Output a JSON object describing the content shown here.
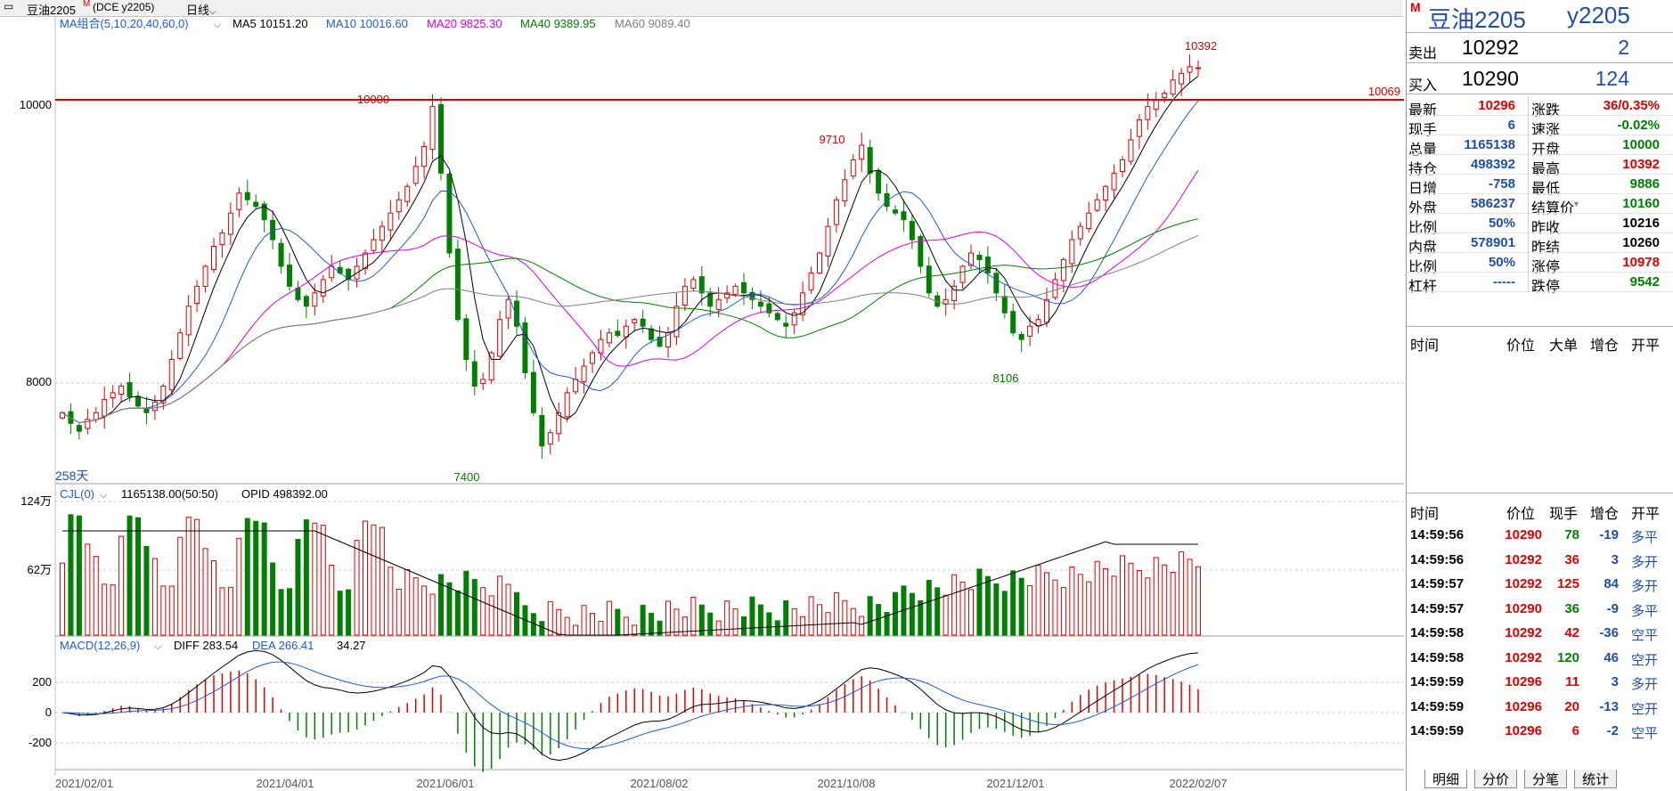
{
  "window": {
    "title": "豆油2205",
    "title_mark": "M",
    "subtitle": "(DCE y2205)",
    "period": "日线"
  },
  "colors": {
    "up": "#e00000",
    "down": "#008000",
    "ma5": "#000000",
    "ma10": "#1f5bd6",
    "ma20": "#e000e0",
    "ma40": "#008000",
    "ma60": "#808080",
    "line": "#e00000"
  },
  "main_legend": {
    "name": "MA组合(5,10,20,40,60,0)",
    "ma5": "MA5 10151.20",
    "ma10": "MA10 10016.60",
    "ma20": "MA20 9825.30",
    "ma40": "MA40 9389.95",
    "ma60": "MA60 9089.40"
  },
  "main_axis": {
    "y10000": "10000",
    "y8000": "8000",
    "days": "258天",
    "hline_value": "10069"
  },
  "annotations": {
    "high_10000": "10000",
    "high_9710": "9710",
    "high_10392": "10392",
    "low_7400": "7400",
    "low_8106": "8106"
  },
  "vol_legend": {
    "name": "CJL(0)",
    "value": "1165138.00(50:50)",
    "opid": "OPID 498392.00"
  },
  "vol_axis": {
    "top": "124万",
    "mid": "62万"
  },
  "macd_legend": {
    "name": "MACD(12,26,9)",
    "diff": "DIFF 283.54",
    "dea": "DEA 266.41",
    "macd": "34.27"
  },
  "macd_axis": {
    "p200": "200",
    "zero": "0",
    "m200": "-200"
  },
  "x_axis": [
    "2021/02/01",
    "2021/04/01",
    "2021/06/01",
    "2021/08/02",
    "2021/10/08",
    "2021/12/01",
    "2022/02/07"
  ],
  "chart_data": {
    "type": "candlestick",
    "range": {
      "y_min": 7400,
      "y_max": 10392
    },
    "closes": [
      7700,
      7620,
      7560,
      7650,
      7700,
      7800,
      7850,
      7900,
      7820,
      7750,
      7700,
      7780,
      7900,
      8100,
      8300,
      8500,
      8650,
      8800,
      8950,
      9050,
      9200,
      9350,
      9300,
      9250,
      9150,
      9000,
      8800,
      8650,
      8550,
      8500,
      8600,
      8700,
      8800,
      8750,
      8700,
      8800,
      8900,
      9000,
      9100,
      9200,
      9300,
      9400,
      9550,
      9700,
      10000,
      9500,
      8900,
      8400,
      8100,
      7900,
      7950,
      8150,
      8400,
      8550,
      8350,
      8000,
      7700,
      7450,
      7550,
      7700,
      7850,
      7950,
      8050,
      8150,
      8250,
      8300,
      8280,
      8350,
      8400,
      8350,
      8250,
      8200,
      8300,
      8500,
      8650,
      8700,
      8600,
      8500,
      8550,
      8600,
      8650,
      8600,
      8550,
      8500,
      8450,
      8400,
      8350,
      8450,
      8600,
      8750,
      8900,
      9100,
      9300,
      9450,
      9600,
      9710,
      9500,
      9350,
      9250,
      9200,
      9150,
      9000,
      8800,
      8600,
      8500,
      8550,
      8650,
      8800,
      8900,
      8850,
      8750,
      8600,
      8450,
      8300,
      8250,
      8350,
      8400,
      8550,
      8700,
      8850,
      9000,
      9100,
      9200,
      9300,
      9400,
      9500,
      9600,
      9750,
      9900,
      10000,
      10050,
      10100,
      10200,
      10250,
      10300,
      10292
    ],
    "volume_max_label": "124万",
    "volume_mid_label": "62万",
    "macd": {
      "diff": 283.54,
      "dea": 266.41,
      "hist": 34.27
    }
  },
  "quote": {
    "symbol": "豆油2205",
    "code": "y2205",
    "mark": "M",
    "sell_label": "卖出",
    "sell_price": "10292",
    "sell_qty": "2",
    "buy_label": "买入",
    "buy_price": "10290",
    "buy_qty": "124",
    "rows": [
      {
        "l1": "最新",
        "v1": "10296",
        "c1": "red",
        "l2": "涨跌",
        "v2": "36/0.35%",
        "c2": "red"
      },
      {
        "l1": "现手",
        "v1": "6",
        "c1": "blue",
        "l2": "速涨",
        "v2": "-0.02%",
        "c2": "green"
      },
      {
        "l1": "总量",
        "v1": "1165138",
        "c1": "blue",
        "l2": "开盘",
        "v2": "10000",
        "c2": "green"
      },
      {
        "l1": "持仓",
        "v1": "498392",
        "c1": "blue",
        "l2": "最高",
        "v2": "10392",
        "c2": "red"
      },
      {
        "l1": "日增",
        "v1": "-758",
        "c1": "blue",
        "l2": "最低",
        "v2": "9886",
        "c2": "green"
      },
      {
        "l1": "外盘",
        "v1": "586237",
        "c1": "blue",
        "l2": "结算价",
        "v2": "10160",
        "c2": "green"
      },
      {
        "l1": "比例",
        "v1": "50%",
        "c1": "blue",
        "l2": "昨收",
        "v2": "10216",
        "c2": "black"
      },
      {
        "l1": "内盘",
        "v1": "578901",
        "c1": "blue",
        "l2": "昨结",
        "v2": "10260",
        "c2": "black"
      },
      {
        "l1": "比例",
        "v1": "50%",
        "c1": "blue",
        "l2": "涨停",
        "v2": "10978",
        "c2": "red"
      },
      {
        "l1": "杠杆",
        "v1": "-----",
        "c1": "blue",
        "l2": "跌停",
        "v2": "9542",
        "c2": "green"
      }
    ],
    "header1": {
      "time": "时间",
      "price": "价位",
      "big": "大单",
      "inc": "增仓",
      "oc": "开平"
    },
    "header2": {
      "time": "时间",
      "price": "价位",
      "qty": "现手",
      "inc": "增仓",
      "oc": "开平"
    },
    "ticks": [
      {
        "time": "14:59:56",
        "price": "10290",
        "qty": "78",
        "inc": "-19",
        "oc": "多平",
        "qc": "green"
      },
      {
        "time": "14:59:56",
        "price": "10292",
        "qty": "36",
        "inc": "3",
        "oc": "多开",
        "qc": "red"
      },
      {
        "time": "14:59:57",
        "price": "10292",
        "qty": "125",
        "inc": "84",
        "oc": "多开",
        "qc": "red"
      },
      {
        "time": "14:59:57",
        "price": "10290",
        "qty": "36",
        "inc": "-9",
        "oc": "多平",
        "qc": "green"
      },
      {
        "time": "14:59:58",
        "price": "10292",
        "qty": "42",
        "inc": "-36",
        "oc": "空平",
        "qc": "red"
      },
      {
        "time": "14:59:58",
        "price": "10292",
        "qty": "120",
        "inc": "46",
        "oc": "空开",
        "qc": "green"
      },
      {
        "time": "14:59:59",
        "price": "10296",
        "qty": "11",
        "inc": "3",
        "oc": "多开",
        "qc": "red"
      },
      {
        "time": "14:59:59",
        "price": "10296",
        "qty": "20",
        "inc": "-13",
        "oc": "空开",
        "qc": "red"
      },
      {
        "time": "14:59:59",
        "price": "10296",
        "qty": "6",
        "inc": "-2",
        "oc": "空平",
        "qc": "red"
      }
    ],
    "tabs": [
      "明细",
      "分价",
      "分笔",
      "统计"
    ]
  }
}
